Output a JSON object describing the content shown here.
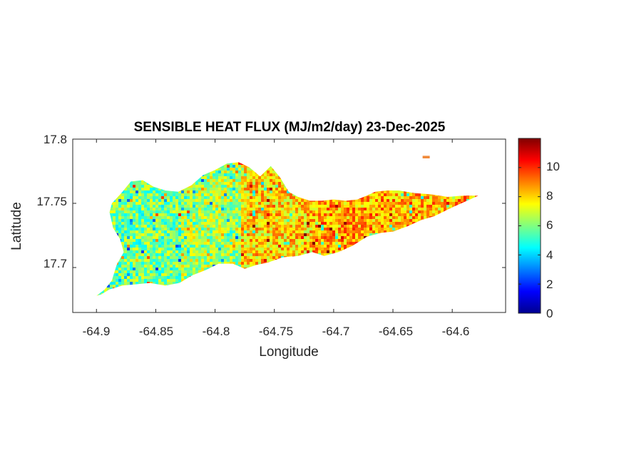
{
  "title": "SENSIBLE HEAT FLUX (MJ/m2/day) 23-Dec-2025",
  "xlabel": "Longitude",
  "ylabel": "Latitude",
  "x_ticks": [
    "-64.9",
    "-64.85",
    "-64.8",
    "-64.75",
    "-64.7",
    "-64.65",
    "-64.6"
  ],
  "y_ticks": [
    "17.8",
    "17.75",
    "17.7"
  ],
  "colorbar_ticks": [
    "0",
    "2",
    "4",
    "6",
    "8",
    "10"
  ],
  "colormap": "jet",
  "colors": {
    "axis": "#262626",
    "background": "#ffffff"
  },
  "chart_data": {
    "type": "heatmap",
    "title": "SENSIBLE HEAT FLUX (MJ/m2/day) 23-Dec-2025",
    "xlabel": "Longitude",
    "ylabel": "Latitude",
    "xlim": [
      -64.92,
      -64.555
    ],
    "ylim": [
      17.665,
      17.8
    ],
    "clim": [
      0,
      12
    ],
    "x_ticks": [
      -64.9,
      -64.85,
      -64.8,
      -64.75,
      -64.7,
      -64.65,
      -64.6
    ],
    "y_ticks": [
      17.7,
      17.75,
      17.8
    ],
    "colorbar_ticks": [
      0,
      2,
      4,
      6,
      8,
      10
    ],
    "colormap": "jet",
    "region_outline": [
      [
        -64.9,
        17.678
      ],
      [
        -64.893,
        17.683
      ],
      [
        -64.887,
        17.69
      ],
      [
        -64.883,
        17.702
      ],
      [
        -64.877,
        17.712
      ],
      [
        -64.88,
        17.722
      ],
      [
        -64.886,
        17.731
      ],
      [
        -64.889,
        17.743
      ],
      [
        -64.887,
        17.75
      ],
      [
        -64.879,
        17.758
      ],
      [
        -64.871,
        17.767
      ],
      [
        -64.861,
        17.768
      ],
      [
        -64.852,
        17.763
      ],
      [
        -64.842,
        17.76
      ],
      [
        -64.831,
        17.759
      ],
      [
        -64.82,
        17.764
      ],
      [
        -64.81,
        17.772
      ],
      [
        -64.8,
        17.776
      ],
      [
        -64.79,
        17.781
      ],
      [
        -64.78,
        17.782
      ],
      [
        -64.771,
        17.778
      ],
      [
        -64.762,
        17.771
      ],
      [
        -64.753,
        17.779
      ],
      [
        -64.745,
        17.77
      ],
      [
        -64.738,
        17.759
      ],
      [
        -64.73,
        17.755
      ],
      [
        -64.72,
        17.752
      ],
      [
        -64.71,
        17.752
      ],
      [
        -64.7,
        17.753
      ],
      [
        -64.69,
        17.752
      ],
      [
        -64.68,
        17.753
      ],
      [
        -64.672,
        17.756
      ],
      [
        -64.665,
        17.759
      ],
      [
        -64.655,
        17.76
      ],
      [
        -64.645,
        17.76
      ],
      [
        -64.632,
        17.758
      ],
      [
        -64.618,
        17.757
      ],
      [
        -64.604,
        17.755
      ],
      [
        -64.59,
        17.756
      ],
      [
        -64.578,
        17.756
      ],
      [
        -64.59,
        17.751
      ],
      [
        -64.602,
        17.746
      ],
      [
        -64.615,
        17.74
      ],
      [
        -64.626,
        17.737
      ],
      [
        -64.638,
        17.732
      ],
      [
        -64.65,
        17.728
      ],
      [
        -64.66,
        17.727
      ],
      [
        -64.672,
        17.724
      ],
      [
        -64.684,
        17.717
      ],
      [
        -64.696,
        17.712
      ],
      [
        -64.708,
        17.709
      ],
      [
        -64.718,
        17.712
      ],
      [
        -64.73,
        17.709
      ],
      [
        -64.743,
        17.708
      ],
      [
        -64.755,
        17.704
      ],
      [
        -64.765,
        17.702
      ],
      [
        -64.775,
        17.699
      ],
      [
        -64.785,
        17.703
      ],
      [
        -64.797,
        17.703
      ],
      [
        -64.808,
        17.698
      ],
      [
        -64.819,
        17.694
      ],
      [
        -64.83,
        17.688
      ],
      [
        -64.842,
        17.686
      ],
      [
        -64.855,
        17.688
      ],
      [
        -64.866,
        17.687
      ],
      [
        -64.878,
        17.686
      ],
      [
        -64.889,
        17.683
      ],
      [
        -64.896,
        17.679
      ]
    ],
    "islet": [
      [
        -64.625,
        17.787
      ],
      [
        -64.619,
        17.787
      ],
      [
        -64.619,
        17.785
      ],
      [
        -64.625,
        17.785
      ]
    ],
    "value_pattern": "West and central island mostly 4-7 (green/cyan, scattered yellow); east of about -64.78 mostly 7-10 (yellow/orange); hotspots near 10-12 (red) along the south-central coast and far east.",
    "value_zones": [
      {
        "lon_max": -64.83,
        "typical": 5.8
      },
      {
        "lon_max": -64.78,
        "typical": 6.5
      },
      {
        "lon_max": -64.72,
        "typical": 8.0
      },
      {
        "lon_max": -64.55,
        "typical": 8.6
      }
    ],
    "grid": false
  }
}
